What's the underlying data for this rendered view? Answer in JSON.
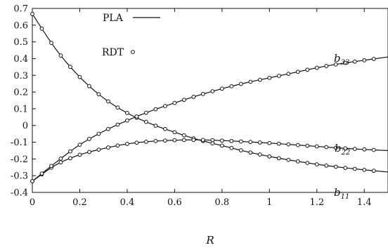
{
  "chart_data": {
    "type": "line",
    "xlabel": "R",
    "ylabel": "",
    "xlim": [
      0,
      1.5
    ],
    "ylim": [
      -0.4,
      0.7
    ],
    "x_ticks": [
      "0",
      "0.2",
      "0.4",
      "0.6",
      "0.8",
      "1",
      "1.2",
      "1.4"
    ],
    "x_tick_values": [
      0,
      0.2,
      0.4,
      0.6,
      0.8,
      1.0,
      1.2,
      1.4
    ],
    "y_ticks": [
      "0.7",
      "0.6",
      "0.5",
      "0.4",
      "0.3",
      "0.2",
      "0.1",
      "0",
      "-0.1",
      "-0.2",
      "-0.3",
      "-0.4"
    ],
    "y_tick_values": [
      0.7,
      0.6,
      0.5,
      0.4,
      0.3,
      0.2,
      0.1,
      0,
      -0.1,
      -0.2,
      -0.3,
      -0.4
    ],
    "legend": {
      "placement": "top-left",
      "line_label": "PLA",
      "marker_label": "RDT"
    },
    "series": [
      {
        "name_base": "b",
        "name_sub": "11",
        "points": [
          [
            0,
            0.667
          ],
          [
            0.1,
            0.455
          ],
          [
            0.2,
            0.29
          ],
          [
            0.3,
            0.165
          ],
          [
            0.4,
            0.075
          ],
          [
            0.5,
            0.01
          ],
          [
            0.6,
            -0.04
          ],
          [
            0.7,
            -0.085
          ],
          [
            0.8,
            -0.12
          ],
          [
            0.9,
            -0.155
          ],
          [
            1.0,
            -0.185
          ],
          [
            1.1,
            -0.21
          ],
          [
            1.2,
            -0.232
          ],
          [
            1.3,
            -0.25
          ],
          [
            1.4,
            -0.265
          ],
          [
            1.5,
            -0.278
          ]
        ]
      },
      {
        "name_base": "b",
        "name_sub": "22",
        "points": [
          [
            0,
            -0.333
          ],
          [
            0.1,
            -0.235
          ],
          [
            0.2,
            -0.175
          ],
          [
            0.3,
            -0.138
          ],
          [
            0.4,
            -0.11
          ],
          [
            0.5,
            -0.095
          ],
          [
            0.6,
            -0.088
          ],
          [
            0.7,
            -0.086
          ],
          [
            0.8,
            -0.09
          ],
          [
            0.9,
            -0.097
          ],
          [
            1.0,
            -0.105
          ],
          [
            1.1,
            -0.115
          ],
          [
            1.2,
            -0.125
          ],
          [
            1.3,
            -0.135
          ],
          [
            1.4,
            -0.143
          ],
          [
            1.5,
            -0.15
          ]
        ]
      },
      {
        "name_base": "b",
        "name_sub": "33",
        "points": [
          [
            0,
            -0.333
          ],
          [
            0.1,
            -0.22
          ],
          [
            0.2,
            -0.115
          ],
          [
            0.3,
            -0.035
          ],
          [
            0.4,
            0.03
          ],
          [
            0.5,
            0.087
          ],
          [
            0.6,
            0.135
          ],
          [
            0.7,
            0.18
          ],
          [
            0.8,
            0.22
          ],
          [
            0.9,
            0.255
          ],
          [
            1.0,
            0.285
          ],
          [
            1.1,
            0.315
          ],
          [
            1.2,
            0.345
          ],
          [
            1.3,
            0.37
          ],
          [
            1.4,
            0.39
          ],
          [
            1.5,
            0.41
          ]
        ]
      }
    ]
  }
}
